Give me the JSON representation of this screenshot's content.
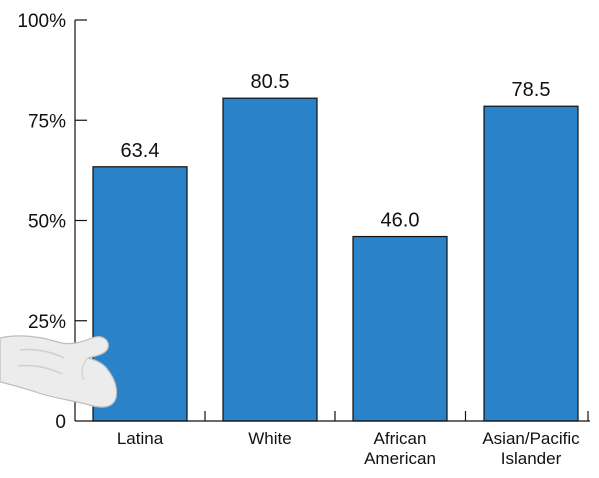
{
  "chart_data": {
    "type": "bar",
    "categories": [
      [
        "Latina"
      ],
      [
        "White"
      ],
      [
        "African",
        "American"
      ],
      [
        "Asian/Pacific",
        "Islander"
      ]
    ],
    "values": [
      63.4,
      80.5,
      46.0,
      78.5
    ],
    "value_labels": [
      "63.4",
      "80.5",
      "46.0",
      "78.5"
    ],
    "yticks": [
      0,
      25,
      50,
      75,
      100
    ],
    "ytick_labels": [
      "0",
      "25%",
      "50%",
      "75%",
      "100%"
    ],
    "ylim": [
      0,
      100
    ],
    "grid": false,
    "bar_color": "#2a82c8",
    "bar_stroke": "#111111",
    "axis_color": "#111111"
  }
}
